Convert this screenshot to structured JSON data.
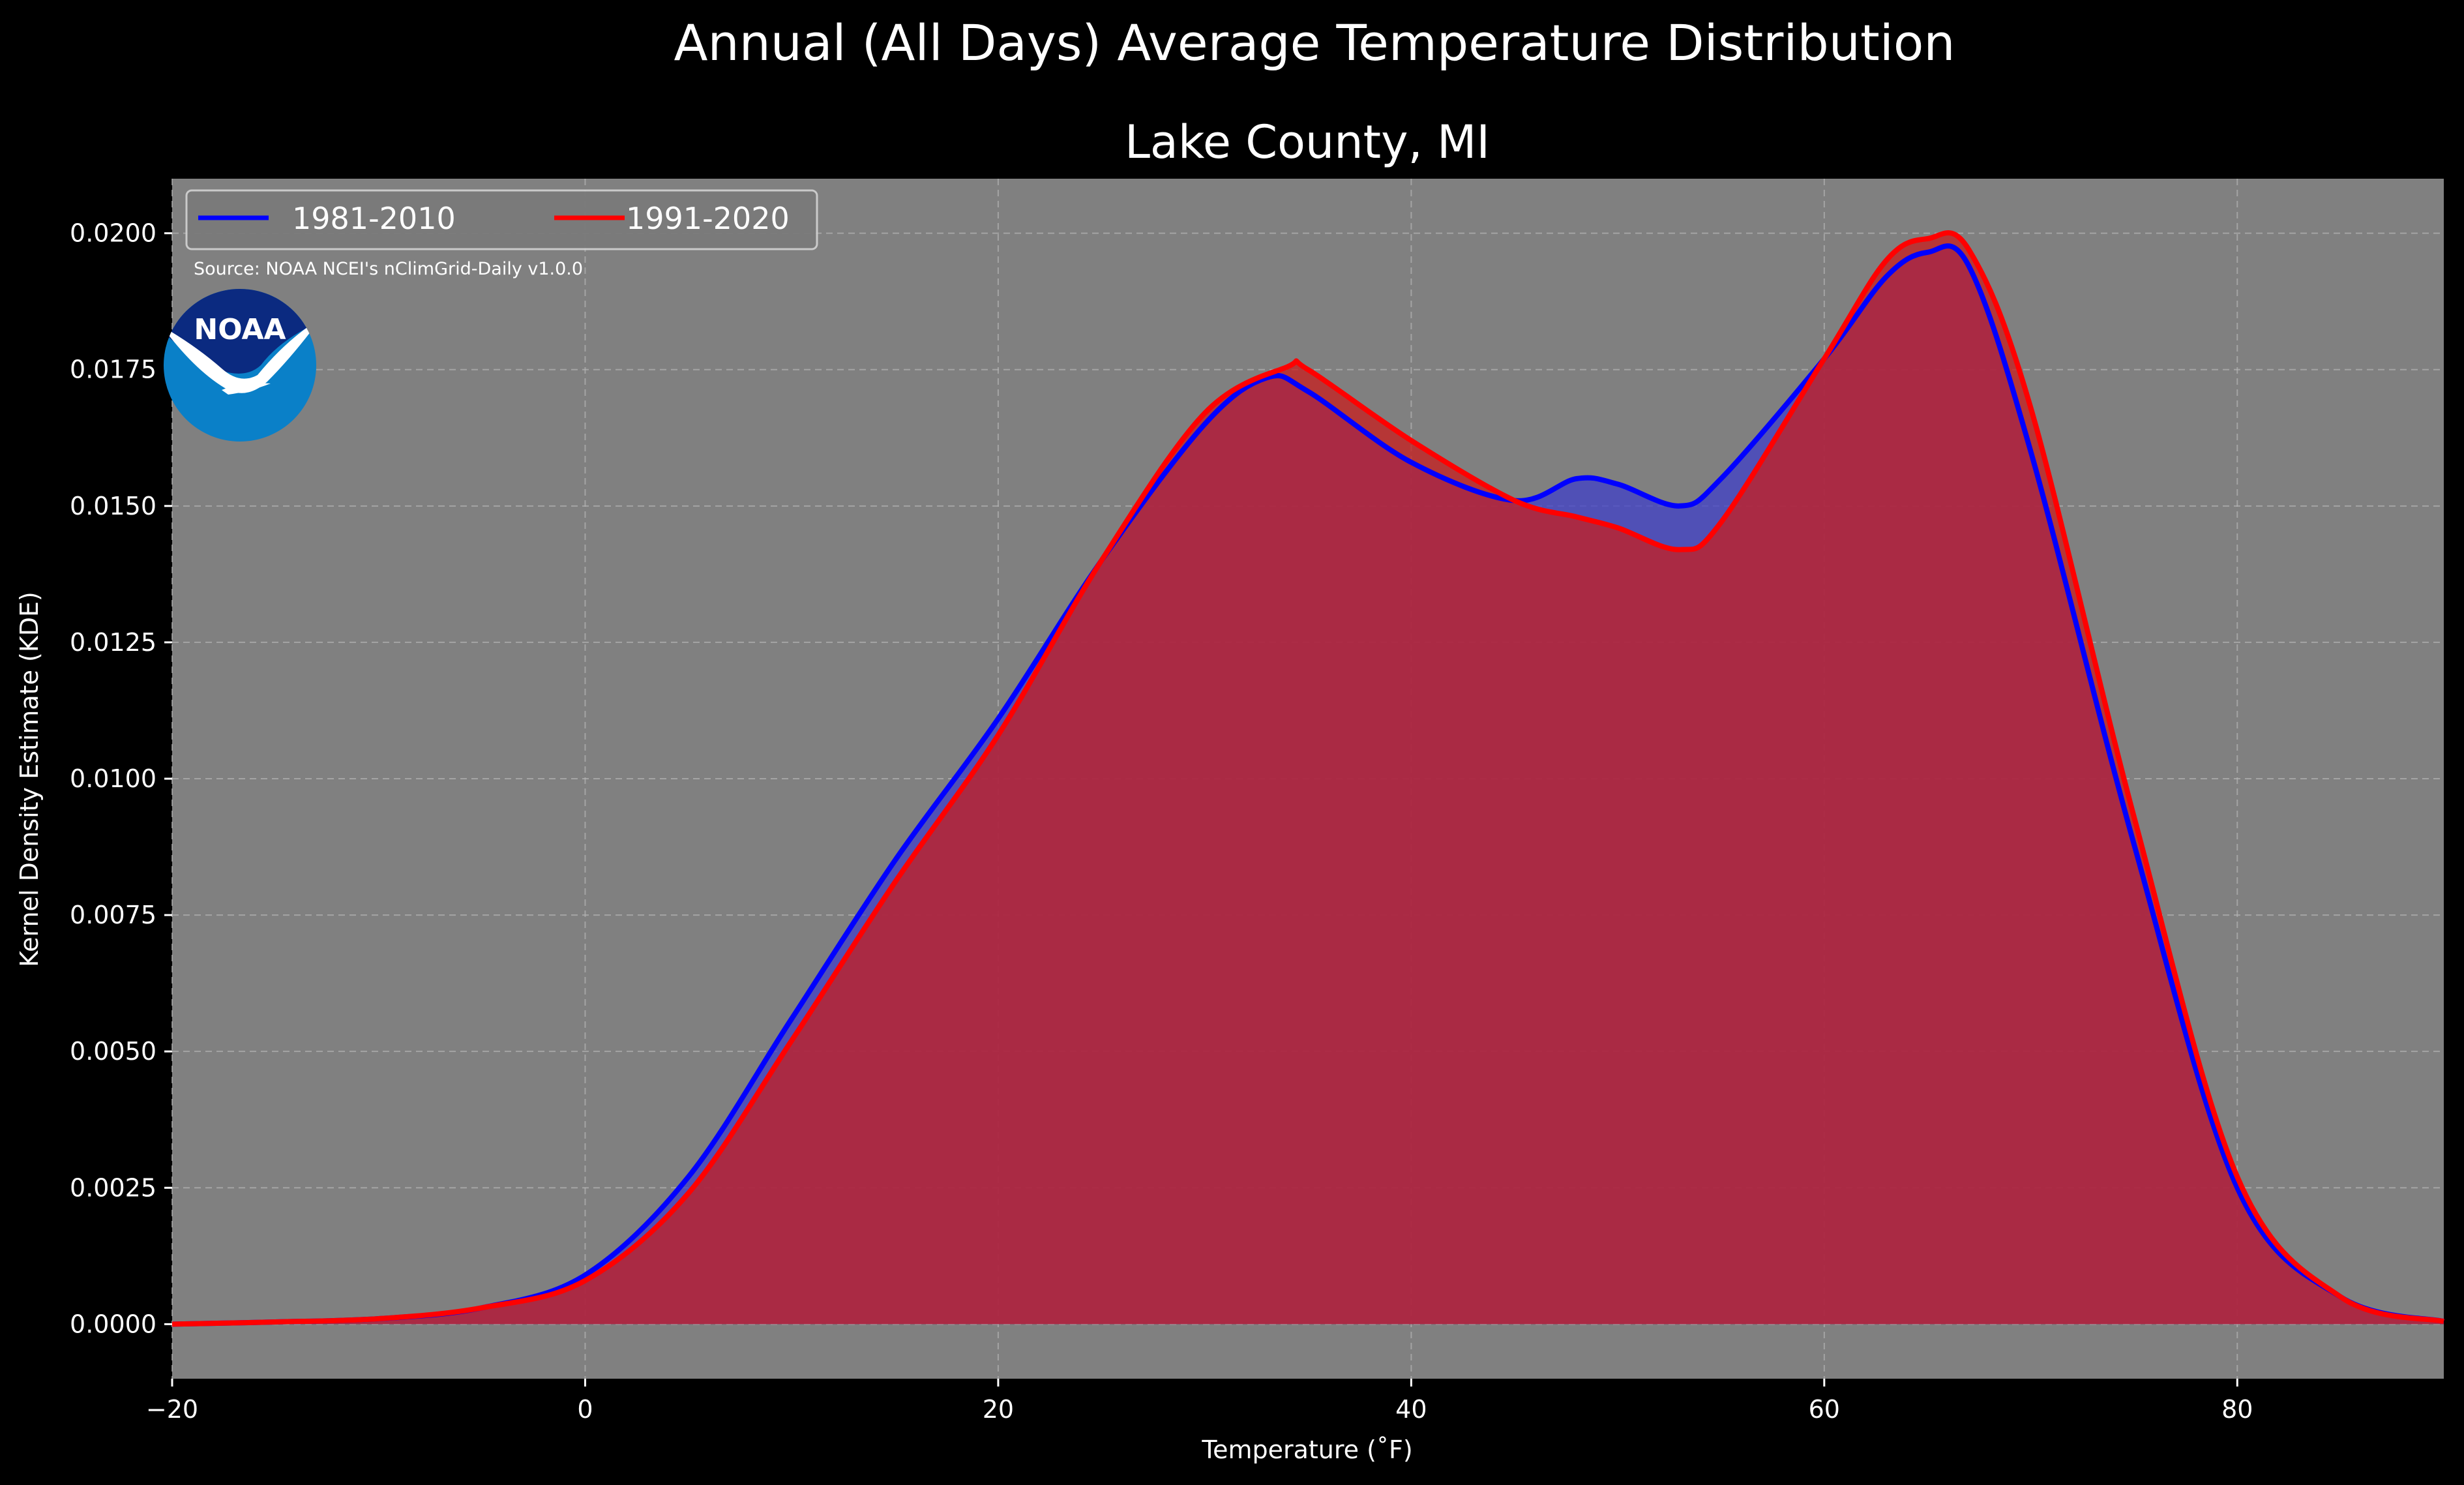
{
  "chart_data": {
    "type": "area",
    "suptitle": "Annual (All Days) Average Temperature Distribution",
    "title": "Lake County, MI",
    "xlabel": "Temperature ($^\\circ$F)",
    "xlabel_display": "Temperature (˚F)",
    "ylabel": "Kernel Density Estimate (KDE)",
    "xlim": [
      -20,
      90
    ],
    "ylim": [
      -0.001,
      0.021
    ],
    "xticks": [
      -20,
      0,
      20,
      40,
      60,
      80
    ],
    "xtick_labels": [
      "−20",
      "0",
      "20",
      "40",
      "60",
      "80"
    ],
    "yticks": [
      0,
      0.0025,
      0.005,
      0.0075,
      0.01,
      0.0125,
      0.015,
      0.0175,
      0.02
    ],
    "ytick_labels": [
      "0.0000",
      "0.0025",
      "0.0050",
      "0.0075",
      "0.0100",
      "0.0125",
      "0.0150",
      "0.0175",
      "0.0200"
    ],
    "grid": true,
    "legend_position": "top-left",
    "source": "Source: NOAA NCEI's nClimGrid-Daily v1.0.0",
    "logo_text": "NOAA",
    "background": "#808080",
    "series": [
      {
        "name": "1981-2010",
        "color": "#0000ff",
        "fill": "#4040c8",
        "x": [
          -20,
          -15,
          -10,
          -5,
          0,
          5,
          10,
          15,
          20,
          25,
          30,
          33,
          35,
          40,
          45,
          48,
          50,
          53,
          55,
          60,
          63,
          65,
          67,
          70,
          75,
          80,
          85,
          90
        ],
        "y": [
          0.0,
          4e-05,
          0.0001,
          0.0003,
          0.0009,
          0.0027,
          0.0056,
          0.0085,
          0.0111,
          0.014,
          0.0165,
          0.01735,
          0.0171,
          0.0158,
          0.0151,
          0.0155,
          0.0154,
          0.015,
          0.0155,
          0.0177,
          0.0192,
          0.01965,
          0.0194,
          0.016,
          0.0088,
          0.0025,
          0.0005,
          5e-05
        ]
      },
      {
        "name": "1991-2020",
        "color": "#ff0000",
        "fill": "#c81e1e",
        "x": [
          -20,
          -15,
          -10,
          -5,
          0,
          5,
          10,
          15,
          20,
          25,
          30,
          34,
          35,
          40,
          45,
          48,
          50,
          53,
          55,
          60,
          63,
          65,
          67,
          70,
          75,
          80,
          85,
          90
        ],
        "y": [
          0.0,
          4e-05,
          0.0001,
          0.0003,
          0.0008,
          0.0024,
          0.0052,
          0.0081,
          0.0108,
          0.014,
          0.0167,
          0.01755,
          0.0175,
          0.0162,
          0.0151,
          0.0148,
          0.0146,
          0.0142,
          0.0147,
          0.0177,
          0.0195,
          0.0199,
          0.0197,
          0.0168,
          0.0093,
          0.0027,
          0.0005,
          5e-05
        ]
      }
    ]
  }
}
